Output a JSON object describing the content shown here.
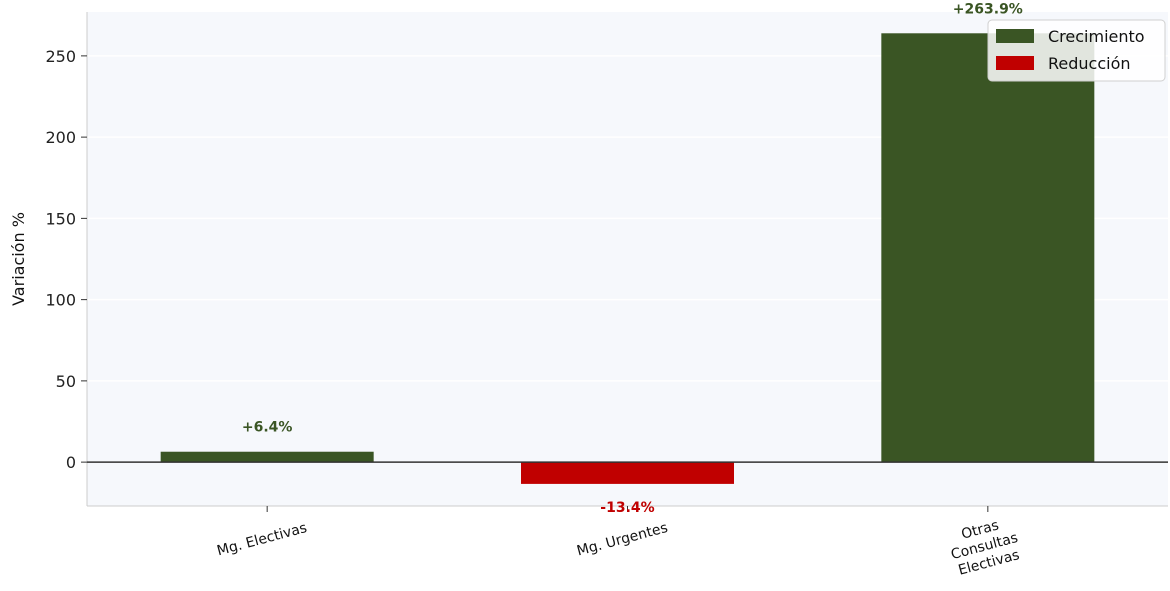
{
  "chart_data": {
    "type": "bar",
    "categories": [
      "Mg. Electivas",
      "Mg. Urgentes",
      "Otras\nConsultas\nElectivas"
    ],
    "values": [
      6.4,
      -13.4,
      263.9
    ],
    "value_labels": [
      "+6.4%",
      "-13.4%",
      "+263.9%"
    ],
    "ylabel": "Variación %",
    "ylim": [
      -27,
      277
    ],
    "yticks": [
      0,
      50,
      100,
      150,
      200,
      250
    ],
    "grid": true,
    "legend": {
      "position": "top-right",
      "entries": [
        {
          "label": "Crecimiento",
          "color": "#3a5524"
        },
        {
          "label": "Reducción",
          "color": "#c00000"
        }
      ]
    },
    "colors": {
      "positive": "#3a5524",
      "negative": "#c00000",
      "background": "#f6f8fc",
      "zero_line": "#333333"
    }
  }
}
